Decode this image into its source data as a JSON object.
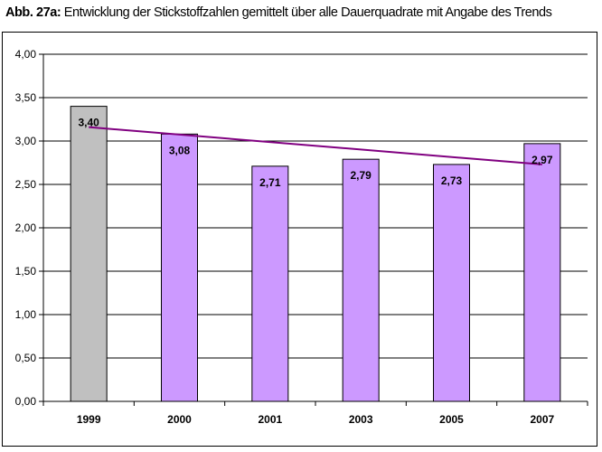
{
  "title_prefix": "Abb. 27a:",
  "title_text": " Entwicklung der Stickstoffzahlen gemittelt über alle Dauerquadrate mit Angabe des Trends",
  "chart_data": {
    "type": "bar",
    "categories": [
      "1999",
      "2000",
      "2001",
      "2003",
      "2005",
      "2007"
    ],
    "values": [
      3.4,
      3.08,
      2.71,
      2.79,
      2.73,
      2.97
    ],
    "value_labels": [
      "3,40",
      "3,08",
      "2,71",
      "2,79",
      "2,73",
      "2,97"
    ],
    "ylim": [
      0,
      4
    ],
    "yticks": [
      0,
      0.5,
      1,
      1.5,
      2,
      2.5,
      3,
      3.5,
      4
    ],
    "ytick_labels": [
      "0,00",
      "0,50",
      "1,00",
      "1,50",
      "2,00",
      "2,50",
      "3,00",
      "3,50",
      "4,00"
    ],
    "bar_colors": [
      "#c0c0c0",
      "#cc99ff",
      "#cc99ff",
      "#cc99ff",
      "#cc99ff",
      "#cc99ff"
    ],
    "trend": {
      "start": 3.16,
      "end": 2.73,
      "color": "#800080"
    },
    "grid": true,
    "legend": "none"
  }
}
